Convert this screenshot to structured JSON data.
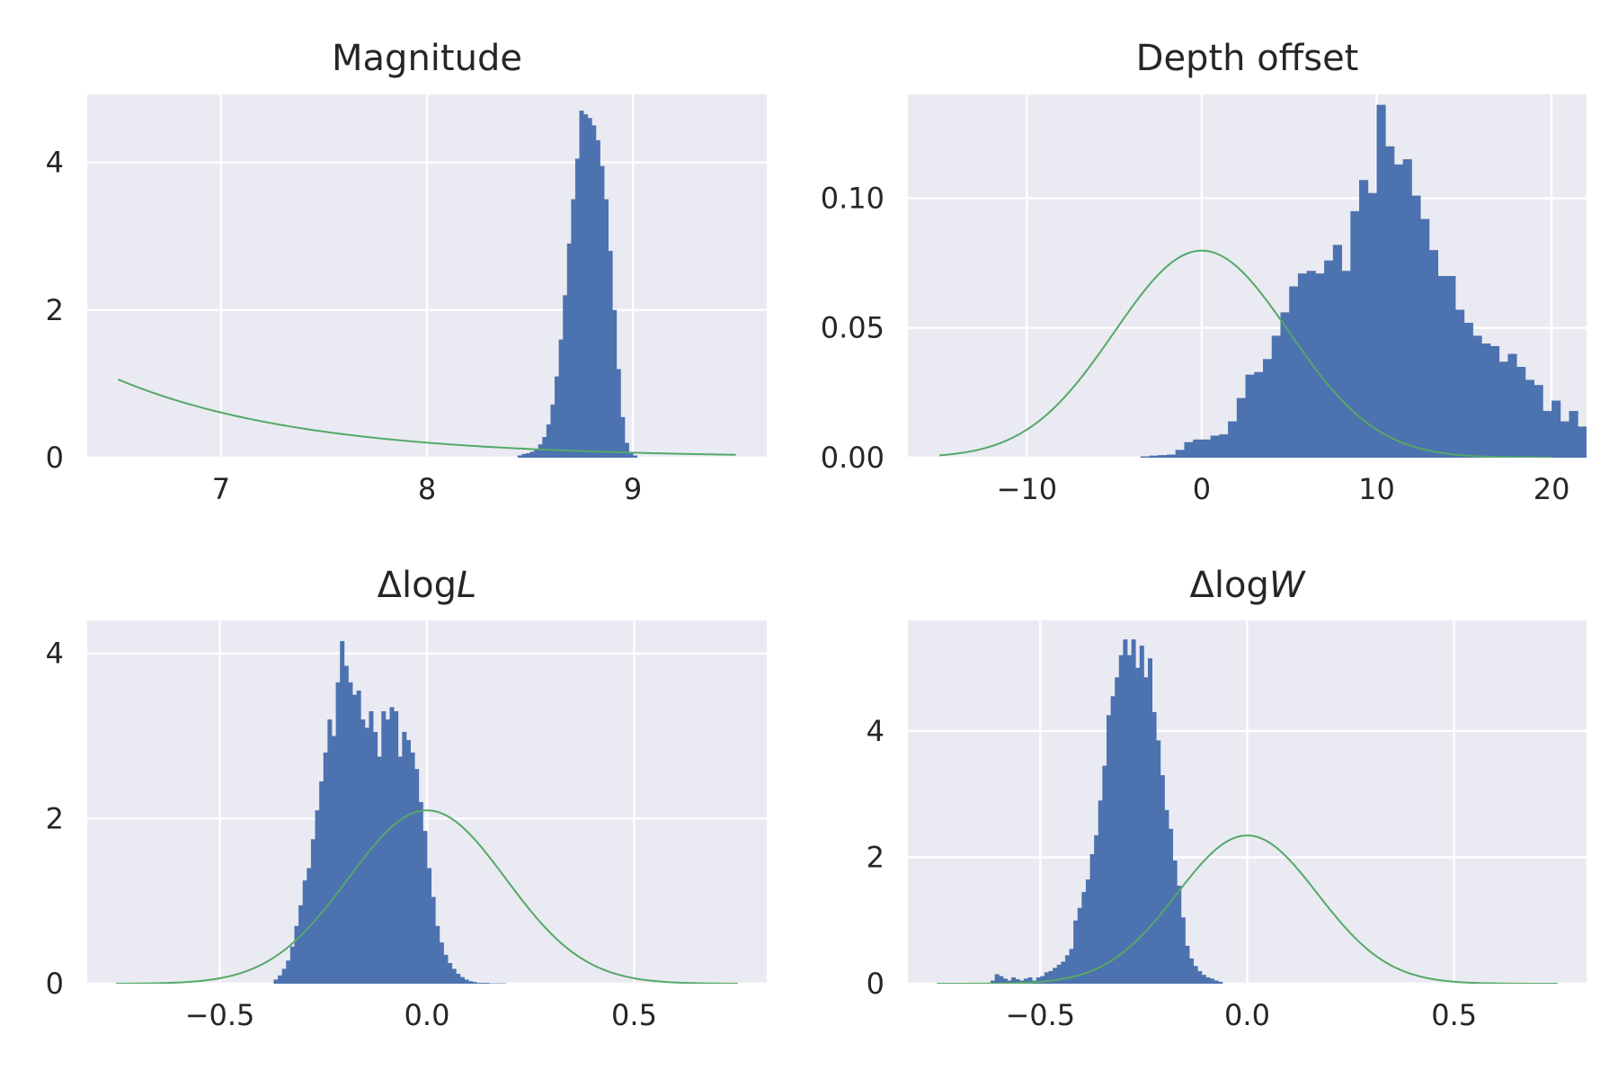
{
  "chart_data": [
    {
      "type": "bar",
      "title": "Magnitude",
      "title_parts": [
        {
          "t": "Magnitude",
          "i": false
        }
      ],
      "xlim": [
        6.35,
        9.65
      ],
      "ylim": [
        0,
        4.92
      ],
      "xticks": [
        7,
        8,
        9
      ],
      "xtick_labels": [
        "7",
        "8",
        "9"
      ],
      "yticks": [
        0,
        2,
        4
      ],
      "ytick_labels": [
        "0",
        "2",
        "4"
      ],
      "hist": {
        "edges_start": 8.44,
        "bin_width": 0.02,
        "values": [
          0.03,
          0.05,
          0.06,
          0.08,
          0.12,
          0.18,
          0.28,
          0.45,
          0.72,
          1.1,
          1.6,
          2.2,
          2.9,
          3.5,
          4.05,
          4.7,
          4.65,
          4.6,
          4.5,
          4.3,
          3.95,
          3.5,
          2.8,
          2.0,
          1.2,
          0.55,
          0.2,
          0.07,
          0.03
        ]
      },
      "curve": {
        "kind": "exponential",
        "x_range": [
          6.5,
          9.5
        ],
        "y_start": 1.06,
        "rate": 1.1
      }
    },
    {
      "type": "bar",
      "title": "Depth offset",
      "title_parts": [
        {
          "t": "Depth offset",
          "i": false
        }
      ],
      "xlim": [
        -16.8,
        22.0
      ],
      "ylim": [
        0,
        0.14
      ],
      "xticks": [
        -10,
        0,
        10,
        20
      ],
      "xtick_labels": [
        "−10",
        "0",
        "10",
        "20"
      ],
      "yticks": [
        0.0,
        0.05,
        0.1
      ],
      "ytick_labels": [
        "0.00",
        "0.05",
        "0.10"
      ],
      "hist": {
        "edges_start": -3.5,
        "bin_width": 0.5,
        "values": [
          0.0005,
          0.0008,
          0.001,
          0.0012,
          0.003,
          0.006,
          0.007,
          0.007,
          0.0085,
          0.009,
          0.014,
          0.023,
          0.032,
          0.033,
          0.038,
          0.047,
          0.056,
          0.066,
          0.071,
          0.072,
          0.071,
          0.076,
          0.082,
          0.072,
          0.095,
          0.107,
          0.102,
          0.136,
          0.12,
          0.113,
          0.115,
          0.101,
          0.092,
          0.08,
          0.07,
          0.07,
          0.057,
          0.052,
          0.047,
          0.044,
          0.043,
          0.037,
          0.04,
          0.035,
          0.03,
          0.028,
          0.018,
          0.022,
          0.014,
          0.018,
          0.012,
          0.013,
          0.009,
          0.007,
          0.006,
          0.003,
          0.002,
          0.0015,
          0.001,
          0.0008,
          0.0015,
          0.0005,
          0.0006,
          0.0004,
          0.0008,
          0.0005,
          0.0006,
          0.001
        ]
      },
      "curve": {
        "kind": "gaussian",
        "x_range": [
          -15,
          20
        ],
        "mu": 0,
        "sigma": 5
      }
    },
    {
      "type": "bar",
      "title": "ΔlogL",
      "title_parts": [
        {
          "t": "Δlog",
          "i": false
        },
        {
          "t": "L",
          "i": true
        }
      ],
      "xlim": [
        -0.82,
        0.82
      ],
      "ylim": [
        0,
        4.4
      ],
      "xticks": [
        -0.5,
        0.0,
        0.5
      ],
      "xtick_labels": [
        "−0.5",
        "0.0",
        "0.5"
      ],
      "yticks": [
        0,
        2,
        4
      ],
      "ytick_labels": [
        "0",
        "2",
        "4"
      ],
      "hist": {
        "edges_start": -0.37,
        "bin_width": 0.01,
        "values": [
          0.05,
          0.1,
          0.18,
          0.28,
          0.45,
          0.7,
          0.95,
          1.25,
          1.4,
          1.75,
          2.1,
          2.45,
          2.8,
          3.2,
          3.0,
          3.65,
          4.15,
          3.85,
          3.65,
          3.5,
          3.55,
          3.2,
          3.1,
          3.3,
          3.05,
          2.75,
          3.3,
          3.2,
          3.35,
          3.3,
          2.75,
          3.05,
          2.95,
          2.8,
          2.6,
          2.2,
          1.85,
          1.4,
          1.05,
          0.7,
          0.5,
          0.35,
          0.25,
          0.18,
          0.12,
          0.08,
          0.05,
          0.03,
          0.02,
          0.01,
          0.01,
          0.01,
          0.005,
          0.005,
          0.005,
          0.005
        ]
      },
      "curve": {
        "kind": "gaussian",
        "x_range": [
          -0.75,
          0.75
        ],
        "mu": 0,
        "sigma": 0.19
      }
    },
    {
      "type": "bar",
      "title": "ΔlogW",
      "title_parts": [
        {
          "t": "Δlog",
          "i": false
        },
        {
          "t": "W",
          "i": true
        }
      ],
      "xlim": [
        -0.82,
        0.82
      ],
      "ylim": [
        0,
        5.75
      ],
      "xticks": [
        -0.5,
        0.0,
        0.5
      ],
      "xtick_labels": [
        "−0.5",
        "0.0",
        "0.5"
      ],
      "yticks": [
        0,
        2,
        4
      ],
      "ytick_labels": [
        "0",
        "2",
        "4"
      ],
      "hist": {
        "edges_start": -0.62,
        "bin_width": 0.01,
        "values": [
          0.05,
          0.15,
          0.12,
          0.08,
          0.05,
          0.1,
          0.07,
          0.05,
          0.08,
          0.1,
          0.05,
          0.1,
          0.12,
          0.18,
          0.2,
          0.25,
          0.3,
          0.35,
          0.45,
          0.55,
          1.0,
          1.2,
          1.45,
          1.65,
          2.05,
          2.35,
          2.9,
          3.45,
          4.25,
          4.55,
          4.85,
          5.2,
          5.45,
          5.2,
          5.45,
          5.0,
          5.35,
          4.85,
          5.15,
          4.3,
          3.85,
          3.3,
          2.75,
          2.45,
          1.95,
          1.55,
          1.05,
          0.6,
          0.4,
          0.28,
          0.2,
          0.14,
          0.1,
          0.08,
          0.05,
          0.03
        ]
      },
      "curve": {
        "kind": "gaussian",
        "x_range": [
          -0.75,
          0.75
        ],
        "mu": 0,
        "sigma": 0.17
      }
    }
  ],
  "colors": {
    "panel_background": "#eaeaf2",
    "grid": "#ffffff",
    "bars": "#4c72b0",
    "curve": "#55a868",
    "text": "#262626"
  }
}
